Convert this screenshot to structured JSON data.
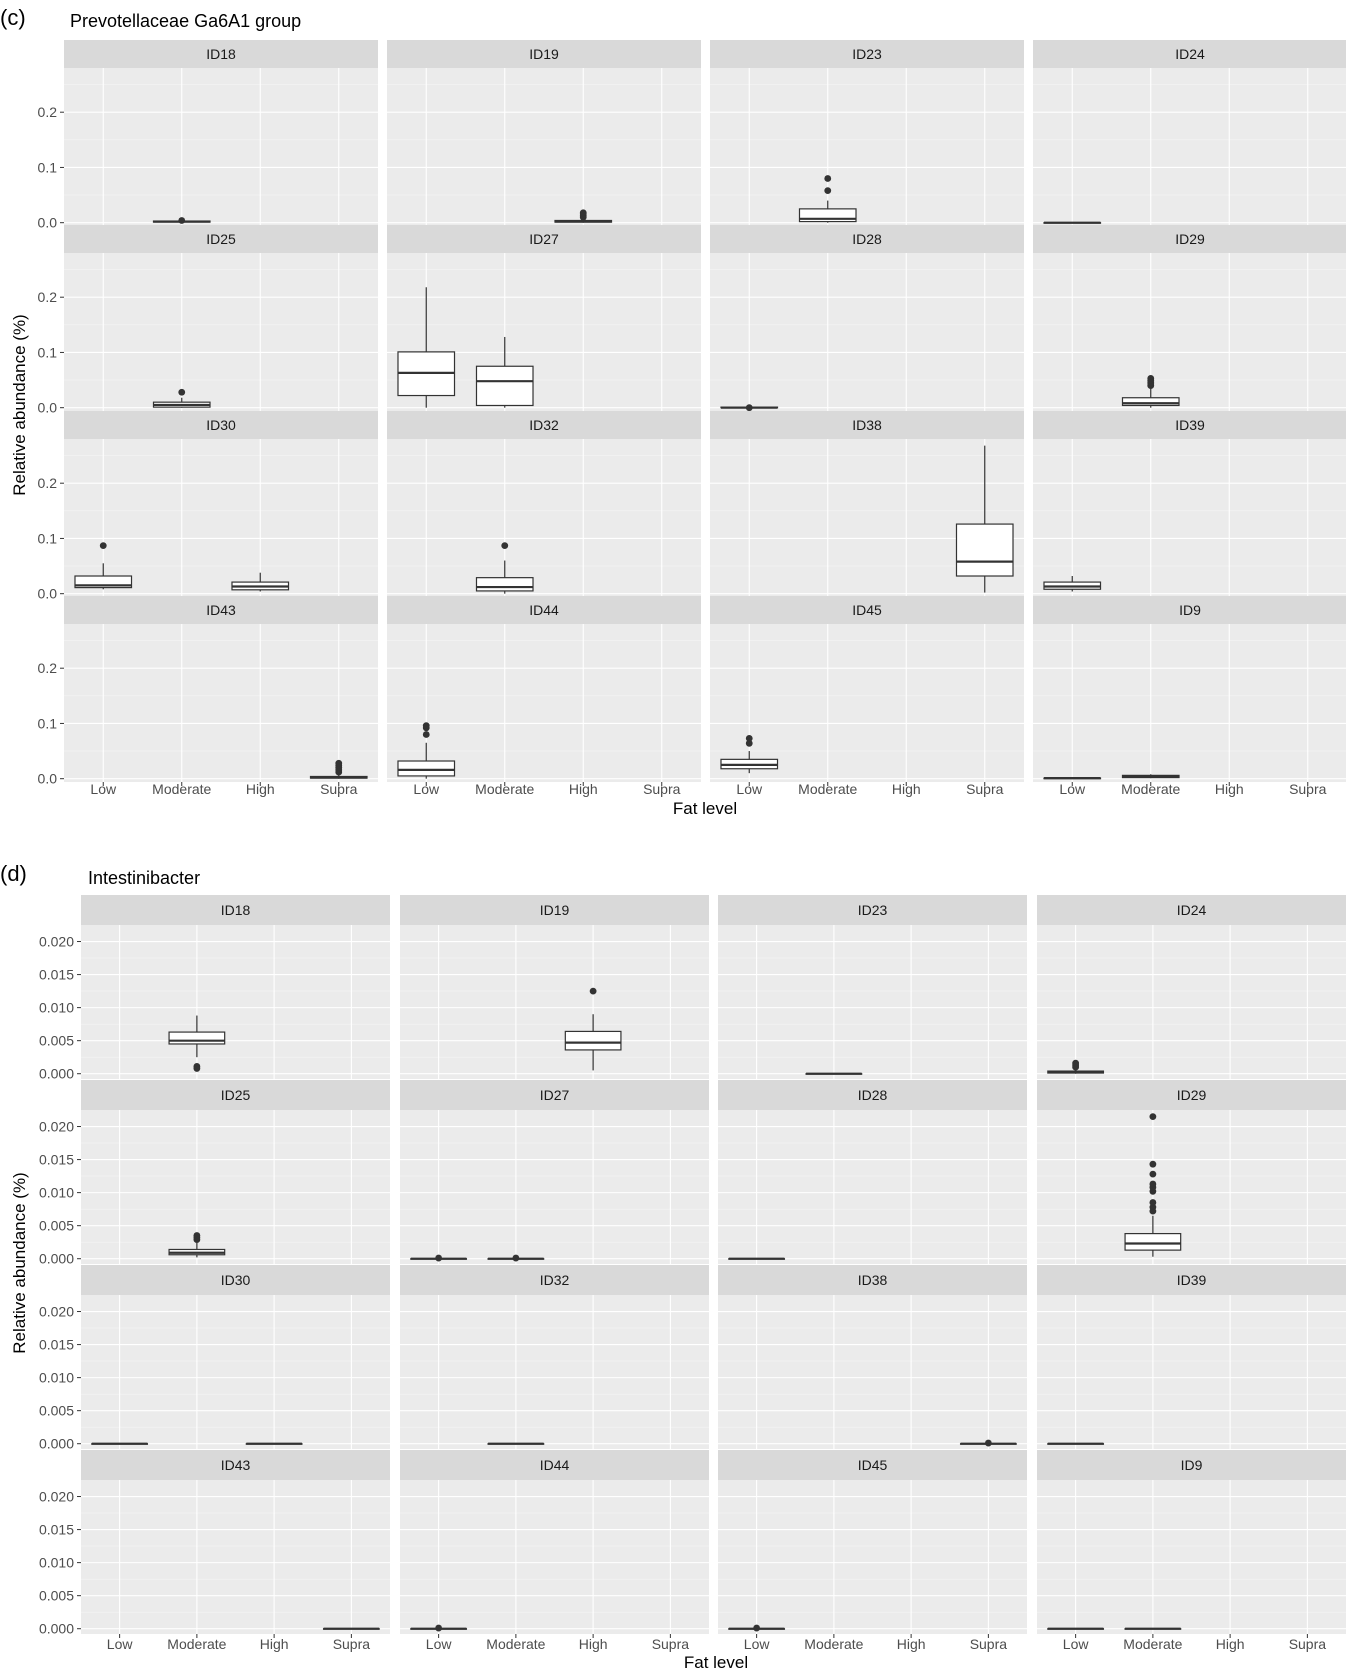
{
  "chart_data": [
    {
      "type": "box",
      "figure_label": "(c)",
      "title": "Prevotellaceae Ga6A1 group",
      "xlabel": "Fat level",
      "ylabel": "Relative abundance (%)",
      "categories": [
        "Low",
        "Moderate",
        "High",
        "Supra"
      ],
      "ylim": [
        -0.006,
        0.28
      ],
      "yticks": [
        0.0,
        0.1,
        0.2
      ],
      "ytick_labels": [
        "0.0",
        "0.1",
        "0.2"
      ],
      "grid": true,
      "panels": [
        {
          "id": "ID18",
          "boxes": [
            {
              "cat": "Moderate",
              "min": 0.0,
              "q1": 0.001,
              "median": 0.002,
              "q3": 0.003,
              "max": 0.004,
              "outliers": [
                0.004
              ]
            }
          ]
        },
        {
          "id": "ID19",
          "boxes": [
            {
              "cat": "High",
              "min": 0.0,
              "q1": 0.001,
              "median": 0.002,
              "q3": 0.004,
              "max": 0.007,
              "outliers": [
                0.01,
                0.013,
                0.016,
                0.018
              ]
            }
          ]
        },
        {
          "id": "ID23",
          "boxes": [
            {
              "cat": "Moderate",
              "min": 0.0,
              "q1": 0.002,
              "median": 0.007,
              "q3": 0.025,
              "max": 0.04,
              "outliers": [
                0.058,
                0.08
              ]
            }
          ]
        },
        {
          "id": "ID24",
          "boxes": [
            {
              "cat": "Low",
              "min": 0.0,
              "q1": 0.0,
              "median": 0.0,
              "q3": 0.0,
              "max": 0.0,
              "outliers": []
            }
          ]
        },
        {
          "id": "ID25",
          "boxes": [
            {
              "cat": "Moderate",
              "min": 0.0,
              "q1": 0.001,
              "median": 0.005,
              "q3": 0.01,
              "max": 0.018,
              "outliers": [
                0.028
              ]
            }
          ]
        },
        {
          "id": "ID27",
          "boxes": [
            {
              "cat": "Low",
              "min": 0.0,
              "q1": 0.022,
              "median": 0.063,
              "q3": 0.101,
              "max": 0.218,
              "outliers": []
            },
            {
              "cat": "Moderate",
              "min": 0.0,
              "q1": 0.004,
              "median": 0.048,
              "q3": 0.075,
              "max": 0.128,
              "outliers": []
            }
          ]
        },
        {
          "id": "ID28",
          "boxes": [
            {
              "cat": "Low",
              "min": 0.0,
              "q1": 0.0,
              "median": 0.0,
              "q3": 0.001,
              "max": 0.001,
              "outliers": [
                0.0
              ]
            }
          ]
        },
        {
          "id": "ID29",
          "boxes": [
            {
              "cat": "Moderate",
              "min": 0.0,
              "q1": 0.004,
              "median": 0.008,
              "q3": 0.018,
              "max": 0.035,
              "outliers": [
                0.04,
                0.043,
                0.046,
                0.05,
                0.053
              ]
            }
          ]
        },
        {
          "id": "ID30",
          "boxes": [
            {
              "cat": "Low",
              "min": 0.008,
              "q1": 0.011,
              "median": 0.015,
              "q3": 0.032,
              "max": 0.055,
              "outliers": [
                0.087
              ]
            },
            {
              "cat": "High",
              "min": 0.004,
              "q1": 0.007,
              "median": 0.013,
              "q3": 0.021,
              "max": 0.038,
              "outliers": []
            }
          ]
        },
        {
          "id": "ID32",
          "boxes": [
            {
              "cat": "Moderate",
              "min": 0.0,
              "q1": 0.005,
              "median": 0.012,
              "q3": 0.029,
              "max": 0.06,
              "outliers": [
                0.087
              ]
            }
          ]
        },
        {
          "id": "ID38",
          "boxes": [
            {
              "cat": "Supra",
              "min": 0.002,
              "q1": 0.032,
              "median": 0.058,
              "q3": 0.126,
              "max": 0.268,
              "outliers": []
            }
          ]
        },
        {
          "id": "ID39",
          "boxes": [
            {
              "cat": "Low",
              "min": 0.004,
              "q1": 0.008,
              "median": 0.013,
              "q3": 0.021,
              "max": 0.032,
              "outliers": []
            }
          ]
        },
        {
          "id": "ID43",
          "boxes": [
            {
              "cat": "Supra",
              "min": 0.0,
              "q1": 0.001,
              "median": 0.002,
              "q3": 0.004,
              "max": 0.008,
              "outliers": [
                0.012,
                0.016,
                0.02,
                0.024,
                0.028
              ]
            }
          ]
        },
        {
          "id": "ID44",
          "boxes": [
            {
              "cat": "Low",
              "min": 0.0,
              "q1": 0.005,
              "median": 0.016,
              "q3": 0.032,
              "max": 0.065,
              "outliers": [
                0.08,
                0.092,
                0.096
              ]
            }
          ]
        },
        {
          "id": "ID45",
          "boxes": [
            {
              "cat": "Low",
              "min": 0.01,
              "q1": 0.018,
              "median": 0.025,
              "q3": 0.035,
              "max": 0.05,
              "outliers": [
                0.064,
                0.073
              ]
            }
          ]
        },
        {
          "id": "ID9",
          "boxes": [
            {
              "cat": "Low",
              "min": 0.0,
              "q1": 0.0,
              "median": 0.001,
              "q3": 0.001,
              "max": 0.002,
              "outliers": []
            },
            {
              "cat": "Moderate",
              "min": 0.001,
              "q1": 0.002,
              "median": 0.004,
              "q3": 0.006,
              "max": 0.008,
              "outliers": []
            }
          ]
        }
      ]
    },
    {
      "type": "box",
      "figure_label": "(d)",
      "title": "Intestinibacter",
      "xlabel": "Fat level",
      "ylabel": "Relative abundance (%)",
      "categories": [
        "Low",
        "Moderate",
        "High",
        "Supra"
      ],
      "ylim": [
        -0.0008,
        0.0225
      ],
      "yticks": [
        0.0,
        0.005,
        0.01,
        0.015,
        0.02
      ],
      "ytick_labels": [
        "0.000",
        "0.005",
        "0.010",
        "0.015",
        "0.020"
      ],
      "grid": true,
      "panels": [
        {
          "id": "ID18",
          "boxes": [
            {
              "cat": "Moderate",
              "min": 0.0025,
              "q1": 0.0045,
              "median": 0.005,
              "q3": 0.0063,
              "max": 0.0088,
              "outliers": [
                0.0011,
                0.0008
              ]
            }
          ]
        },
        {
          "id": "ID19",
          "boxes": [
            {
              "cat": "High",
              "min": 0.0005,
              "q1": 0.0036,
              "median": 0.0047,
              "q3": 0.0064,
              "max": 0.009,
              "outliers": [
                0.0125
              ]
            }
          ]
        },
        {
          "id": "ID23",
          "boxes": [
            {
              "cat": "Moderate",
              "min": 0.0,
              "q1": 0.0,
              "median": 0.0,
              "q3": 0.0,
              "max": 0.0,
              "outliers": []
            }
          ]
        },
        {
          "id": "ID24",
          "boxes": [
            {
              "cat": "Low",
              "min": 0.0,
              "q1": 0.0001,
              "median": 0.0002,
              "q3": 0.0004,
              "max": 0.0007,
              "outliers": [
                0.001,
                0.0013,
                0.0016
              ]
            }
          ]
        },
        {
          "id": "ID25",
          "boxes": [
            {
              "cat": "Moderate",
              "min": 0.0002,
              "q1": 0.0006,
              "median": 0.0009,
              "q3": 0.0014,
              "max": 0.0024,
              "outliers": [
                0.0029,
                0.0032,
                0.0035
              ]
            }
          ]
        },
        {
          "id": "ID27",
          "boxes": [
            {
              "cat": "Low",
              "min": 0.0,
              "q1": 0.0,
              "median": 0.0,
              "q3": 0.0,
              "max": 0.0,
              "outliers": [
                0.0001
              ]
            },
            {
              "cat": "Moderate",
              "min": 0.0,
              "q1": 0.0,
              "median": 0.0,
              "q3": 0.0,
              "max": 0.0,
              "outliers": [
                0.0001
              ]
            }
          ]
        },
        {
          "id": "ID28",
          "boxes": [
            {
              "cat": "Low",
              "min": 0.0,
              "q1": 0.0,
              "median": 0.0,
              "q3": 0.0,
              "max": 0.0,
              "outliers": []
            }
          ]
        },
        {
          "id": "ID29",
          "boxes": [
            {
              "cat": "Moderate",
              "min": 0.0003,
              "q1": 0.0013,
              "median": 0.0023,
              "q3": 0.0038,
              "max": 0.0065,
              "outliers": [
                0.0072,
                0.0078,
                0.0085,
                0.0102,
                0.0108,
                0.0113,
                0.0128,
                0.0143,
                0.0215
              ]
            }
          ]
        },
        {
          "id": "ID30",
          "boxes": [
            {
              "cat": "Low",
              "min": 0.0,
              "q1": 0.0,
              "median": 0.0,
              "q3": 0.0,
              "max": 0.0,
              "outliers": []
            },
            {
              "cat": "High",
              "min": 0.0,
              "q1": 0.0,
              "median": 0.0,
              "q3": 0.0,
              "max": 0.0,
              "outliers": []
            }
          ]
        },
        {
          "id": "ID32",
          "boxes": [
            {
              "cat": "Moderate",
              "min": 0.0,
              "q1": 0.0,
              "median": 0.0,
              "q3": 0.0,
              "max": 0.0,
              "outliers": []
            }
          ]
        },
        {
          "id": "ID38",
          "boxes": [
            {
              "cat": "Supra",
              "min": 0.0,
              "q1": 0.0,
              "median": 0.0,
              "q3": 0.0,
              "max": 0.0,
              "outliers": [
                0.0001
              ]
            }
          ]
        },
        {
          "id": "ID39",
          "boxes": [
            {
              "cat": "Low",
              "min": 0.0,
              "q1": 0.0,
              "median": 0.0,
              "q3": 0.0,
              "max": 0.0,
              "outliers": []
            }
          ]
        },
        {
          "id": "ID43",
          "boxes": [
            {
              "cat": "Supra",
              "min": 0.0,
              "q1": 0.0,
              "median": 0.0,
              "q3": 0.0,
              "max": 0.0,
              "outliers": []
            }
          ]
        },
        {
          "id": "ID44",
          "boxes": [
            {
              "cat": "Low",
              "min": 0.0,
              "q1": 0.0,
              "median": 0.0,
              "q3": 0.0,
              "max": 0.0,
              "outliers": [
                0.0001
              ]
            }
          ]
        },
        {
          "id": "ID45",
          "boxes": [
            {
              "cat": "Low",
              "min": 0.0,
              "q1": 0.0,
              "median": 0.0,
              "q3": 0.0,
              "max": 0.0,
              "outliers": [
                0.0001
              ]
            }
          ]
        },
        {
          "id": "ID9",
          "boxes": [
            {
              "cat": "Low",
              "min": 0.0,
              "q1": 0.0,
              "median": 0.0,
              "q3": 0.0,
              "max": 0.0,
              "outliers": []
            },
            {
              "cat": "Moderate",
              "min": 0.0,
              "q1": 0.0,
              "median": 0.0,
              "q3": 0.0,
              "max": 0.0,
              "outliers": []
            }
          ]
        }
      ]
    }
  ]
}
